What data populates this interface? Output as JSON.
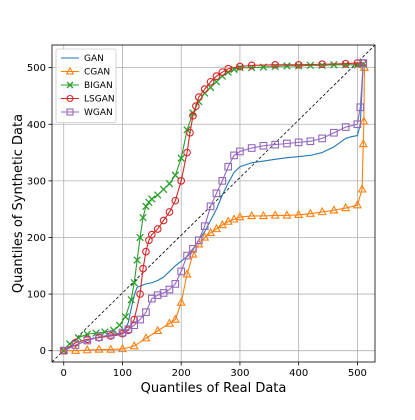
{
  "chart_data": {
    "type": "line",
    "title": "",
    "xlabel": "Quantiles of Real Data",
    "ylabel": "Quantiles of Synthetic Data",
    "xlim": [
      -20,
      530
    ],
    "ylim": [
      -20,
      540
    ],
    "xticks": [
      "0",
      "100",
      "200",
      "300",
      "400",
      "500"
    ],
    "yticks": [
      "0",
      "100",
      "200",
      "300",
      "400",
      "500"
    ],
    "grid": true,
    "legend_position": "upper-left",
    "reference_line": {
      "style": "dashed",
      "color": "#000000",
      "from": [
        -20,
        -20
      ],
      "to": [
        530,
        540
      ]
    },
    "series": [
      {
        "name": "GAN",
        "color": "#1f77b4",
        "marker": "none",
        "x": [
          0,
          10,
          30,
          50,
          70,
          90,
          100,
          105,
          110,
          115,
          120,
          125,
          140,
          150,
          160,
          170,
          180,
          190,
          200,
          210,
          220,
          230,
          240,
          250,
          260,
          270,
          280,
          290,
          300,
          320,
          340,
          360,
          380,
          400,
          420,
          440,
          460,
          480,
          490,
          500,
          505,
          510
        ],
        "y": [
          0,
          5,
          14,
          22,
          25,
          27,
          30,
          38,
          50,
          75,
          98,
          112,
          118,
          120,
          124,
          130,
          140,
          150,
          158,
          166,
          178,
          196,
          210,
          230,
          250,
          275,
          296,
          315,
          325,
          332,
          335,
          338,
          341,
          343,
          345,
          350,
          360,
          375,
          378,
          380,
          400,
          510
        ]
      },
      {
        "name": "CGAN",
        "color": "#ff7f0e",
        "marker": "triangle",
        "x": [
          0,
          20,
          40,
          60,
          80,
          100,
          120,
          140,
          160,
          180,
          190,
          200,
          210,
          220,
          230,
          240,
          250,
          260,
          270,
          280,
          290,
          300,
          320,
          340,
          360,
          380,
          400,
          420,
          440,
          460,
          480,
          500,
          508,
          510,
          511,
          512
        ],
        "y": [
          0,
          0,
          1,
          2,
          2,
          3,
          8,
          22,
          35,
          48,
          55,
          85,
          135,
          170,
          188,
          200,
          208,
          215,
          222,
          228,
          232,
          236,
          238,
          238,
          239,
          239,
          240,
          242,
          245,
          248,
          252,
          257,
          285,
          365,
          405,
          500
        ]
      },
      {
        "name": "BIGAN",
        "color": "#2ca02c",
        "marker": "x",
        "x": [
          0,
          10,
          25,
          40,
          55,
          70,
          85,
          95,
          105,
          115,
          120,
          125,
          130,
          135,
          140,
          145,
          150,
          160,
          170,
          180,
          190,
          200,
          210,
          220,
          230,
          240,
          250,
          260,
          270,
          280,
          290,
          300,
          320,
          340,
          360,
          380,
          400,
          420,
          440,
          460,
          480,
          500,
          510
        ],
        "y": [
          0,
          12,
          23,
          29,
          31,
          33,
          36,
          45,
          60,
          90,
          120,
          160,
          200,
          235,
          255,
          262,
          268,
          275,
          285,
          295,
          310,
          340,
          390,
          420,
          440,
          455,
          465,
          475,
          485,
          492,
          497,
          500,
          500,
          501,
          502,
          503,
          503,
          504,
          504,
          505,
          505,
          505,
          506
        ]
      },
      {
        "name": "LSGAN",
        "color": "#d62728",
        "marker": "circle",
        "x": [
          0,
          20,
          40,
          60,
          80,
          100,
          110,
          120,
          130,
          135,
          140,
          145,
          150,
          160,
          170,
          180,
          190,
          200,
          210,
          215,
          220,
          225,
          230,
          240,
          250,
          260,
          270,
          280,
          300,
          320,
          360,
          400,
          440,
          480,
          500,
          510
        ],
        "y": [
          0,
          14,
          20,
          23,
          26,
          30,
          36,
          55,
          100,
          145,
          175,
          195,
          205,
          215,
          230,
          245,
          265,
          300,
          350,
          385,
          415,
          432,
          448,
          462,
          475,
          485,
          492,
          498,
          502,
          504,
          505,
          505,
          506,
          507,
          508,
          508
        ]
      },
      {
        "name": "WGAN",
        "color": "#9467bd",
        "marker": "square",
        "x": [
          0,
          20,
          40,
          60,
          80,
          100,
          110,
          120,
          130,
          140,
          150,
          160,
          170,
          180,
          190,
          200,
          210,
          220,
          230,
          240,
          250,
          260,
          270,
          280,
          290,
          300,
          320,
          340,
          360,
          380,
          400,
          420,
          440,
          460,
          480,
          500,
          505,
          510
        ],
        "y": [
          0,
          10,
          18,
          24,
          28,
          32,
          38,
          45,
          55,
          68,
          92,
          98,
          102,
          108,
          118,
          140,
          168,
          180,
          195,
          220,
          255,
          278,
          300,
          325,
          345,
          352,
          358,
          362,
          364,
          366,
          368,
          370,
          375,
          385,
          395,
          400,
          430,
          508
        ]
      }
    ]
  }
}
